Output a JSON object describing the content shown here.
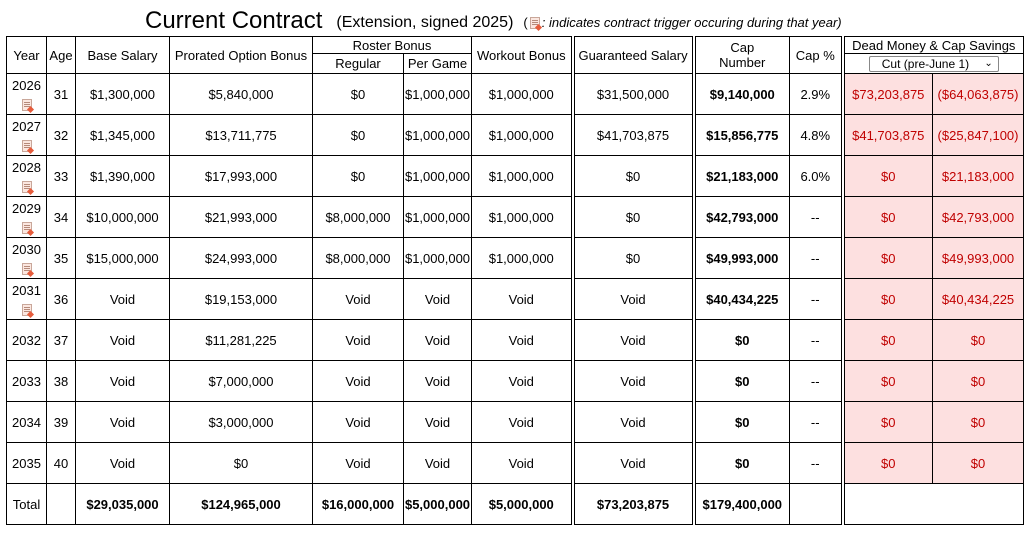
{
  "title": {
    "main": "Current Contract",
    "sub": "(Extension, signed 2025)",
    "legend_open": "(",
    "legend_note": ": indicates contract trigger occuring during that year)"
  },
  "headers": {
    "year": "Year",
    "age": "Age",
    "base_salary": "Base Salary",
    "prorated_option_bonus": "Prorated Option Bonus",
    "roster_bonus": "Roster Bonus",
    "regular": "Regular",
    "per_game": "Per Game",
    "workout_bonus": "Workout Bonus",
    "guaranteed_salary": "Guaranteed Salary",
    "cap_number_line1": "Cap",
    "cap_number_line2": "Number",
    "cap_pct": "Cap %",
    "dead_savings": "Dead Money & Cap Savings",
    "scenario_select": "Cut (pre-June 1)"
  },
  "rows": [
    {
      "year": "2026",
      "trigger": true,
      "age": "31",
      "base": "$1,300,000",
      "prorated": "$5,840,000",
      "regular": "$0",
      "per_game": "$1,000,000",
      "workout": "$1,000,000",
      "guaranteed": "$31,500,000",
      "cap_number": "$9,140,000",
      "cap_pct": "2.9%",
      "dead": "$73,203,875",
      "savings": "($64,063,875)"
    },
    {
      "year": "2027",
      "trigger": true,
      "age": "32",
      "base": "$1,345,000",
      "prorated": "$13,711,775",
      "regular": "$0",
      "per_game": "$1,000,000",
      "workout": "$1,000,000",
      "guaranteed": "$41,703,875",
      "cap_number": "$15,856,775",
      "cap_pct": "4.8%",
      "dead": "$41,703,875",
      "savings": "($25,847,100)"
    },
    {
      "year": "2028",
      "trigger": true,
      "age": "33",
      "base": "$1,390,000",
      "prorated": "$17,993,000",
      "regular": "$0",
      "per_game": "$1,000,000",
      "workout": "$1,000,000",
      "guaranteed": "$0",
      "cap_number": "$21,183,000",
      "cap_pct": "6.0%",
      "dead": "$0",
      "savings": "$21,183,000"
    },
    {
      "year": "2029",
      "trigger": true,
      "age": "34",
      "base": "$10,000,000",
      "prorated": "$21,993,000",
      "regular": "$8,000,000",
      "per_game": "$1,000,000",
      "workout": "$1,000,000",
      "guaranteed": "$0",
      "cap_number": "$42,793,000",
      "cap_pct": "--",
      "dead": "$0",
      "savings": "$42,793,000"
    },
    {
      "year": "2030",
      "trigger": true,
      "age": "35",
      "base": "$15,000,000",
      "prorated": "$24,993,000",
      "regular": "$8,000,000",
      "per_game": "$1,000,000",
      "workout": "$1,000,000",
      "guaranteed": "$0",
      "cap_number": "$49,993,000",
      "cap_pct": "--",
      "dead": "$0",
      "savings": "$49,993,000"
    },
    {
      "year": "2031",
      "trigger": true,
      "age": "36",
      "base": "Void",
      "prorated": "$19,153,000",
      "regular": "Void",
      "per_game": "Void",
      "workout": "Void",
      "guaranteed": "Void",
      "cap_number": "$40,434,225",
      "cap_pct": "--",
      "dead": "$0",
      "savings": "$40,434,225"
    },
    {
      "year": "2032",
      "trigger": false,
      "age": "37",
      "base": "Void",
      "prorated": "$11,281,225",
      "regular": "Void",
      "per_game": "Void",
      "workout": "Void",
      "guaranteed": "Void",
      "cap_number": "$0",
      "cap_pct": "--",
      "dead": "$0",
      "savings": "$0"
    },
    {
      "year": "2033",
      "trigger": false,
      "age": "38",
      "base": "Void",
      "prorated": "$7,000,000",
      "regular": "Void",
      "per_game": "Void",
      "workout": "Void",
      "guaranteed": "Void",
      "cap_number": "$0",
      "cap_pct": "--",
      "dead": "$0",
      "savings": "$0"
    },
    {
      "year": "2034",
      "trigger": false,
      "age": "39",
      "base": "Void",
      "prorated": "$3,000,000",
      "regular": "Void",
      "per_game": "Void",
      "workout": "Void",
      "guaranteed": "Void",
      "cap_number": "$0",
      "cap_pct": "--",
      "dead": "$0",
      "savings": "$0"
    },
    {
      "year": "2035",
      "trigger": false,
      "age": "40",
      "base": "Void",
      "prorated": "$0",
      "regular": "Void",
      "per_game": "Void",
      "workout": "Void",
      "guaranteed": "Void",
      "cap_number": "$0",
      "cap_pct": "--",
      "dead": "$0",
      "savings": "$0"
    }
  ],
  "total": {
    "label": "Total",
    "base": "$29,035,000",
    "prorated": "$124,965,000",
    "regular": "$16,000,000",
    "per_game": "$5,000,000",
    "workout": "$5,000,000",
    "guaranteed": "$73,203,875",
    "cap_number": "$179,400,000"
  },
  "icons": {
    "trigger": "document-trigger-icon",
    "select_chevron": "chevron-down-icon"
  },
  "colors": {
    "dead_money_fill": "#fde0e0",
    "negative_text": "#c00000"
  }
}
